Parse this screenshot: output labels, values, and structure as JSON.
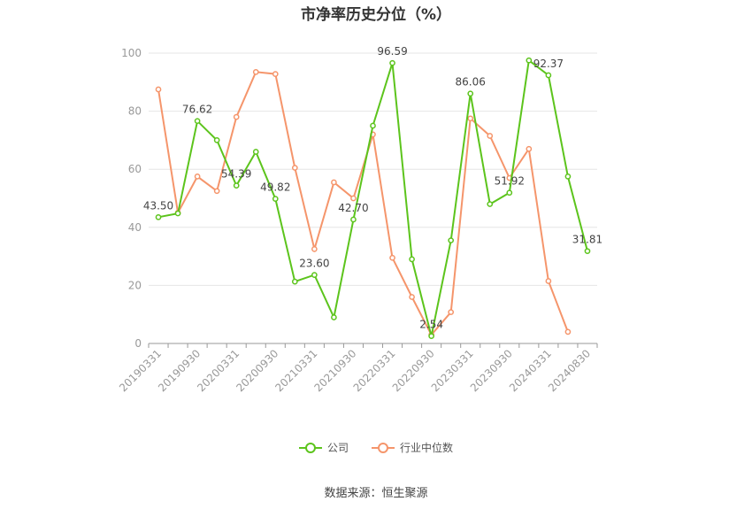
{
  "chart_data": {
    "type": "line",
    "title": "市净率历史分位（%）",
    "x": [
      "20190331",
      "20190630",
      "20190930",
      "20191231",
      "20200331",
      "20200630",
      "20200930",
      "20201231",
      "20210331",
      "20210630",
      "20210930",
      "20211231",
      "20220331",
      "20220630",
      "20220930",
      "20221231",
      "20230331",
      "20230630",
      "20230930",
      "20231231",
      "20240331",
      "20240630",
      "20240830"
    ],
    "x_tick_labels": [
      "20190331",
      "20190930",
      "20200331",
      "20200930",
      "20210331",
      "20210930",
      "20220331",
      "20220930",
      "20230331",
      "20230930",
      "20240331",
      "20240830"
    ],
    "ylim": [
      0,
      100
    ],
    "y_ticks": [
      0,
      20,
      40,
      60,
      80,
      100
    ],
    "grid": true,
    "legend_position": "bottom",
    "series": [
      {
        "name": "公司",
        "color": "#5cc41c",
        "values": [
          43.5,
          44.8,
          76.62,
          70.0,
          54.39,
          66.0,
          49.82,
          21.3,
          23.6,
          9.0,
          42.7,
          75.0,
          96.59,
          29.0,
          2.54,
          35.5,
          86.06,
          48.0,
          51.92,
          97.5,
          92.37,
          57.5,
          31.81
        ],
        "labels": {
          "0": "43.50",
          "2": "76.62",
          "4": "54.39",
          "6": "49.82",
          "8": "23.60",
          "10": "42.70",
          "12": "96.59",
          "14": "2.54",
          "16": "86.06",
          "18": "51.92",
          "20": "92.37",
          "22": "31.81"
        }
      },
      {
        "name": "行业中位数",
        "color": "#f5956b",
        "values": [
          87.5,
          45.0,
          57.5,
          52.5,
          78.0,
          93.5,
          92.8,
          60.5,
          32.5,
          55.5,
          50.0,
          72.0,
          29.5,
          16.0,
          3.0,
          10.8,
          77.5,
          71.5,
          57.0,
          67.0,
          21.5,
          4.0,
          null
        ]
      }
    ]
  },
  "source": "数据来源：恒生聚源"
}
